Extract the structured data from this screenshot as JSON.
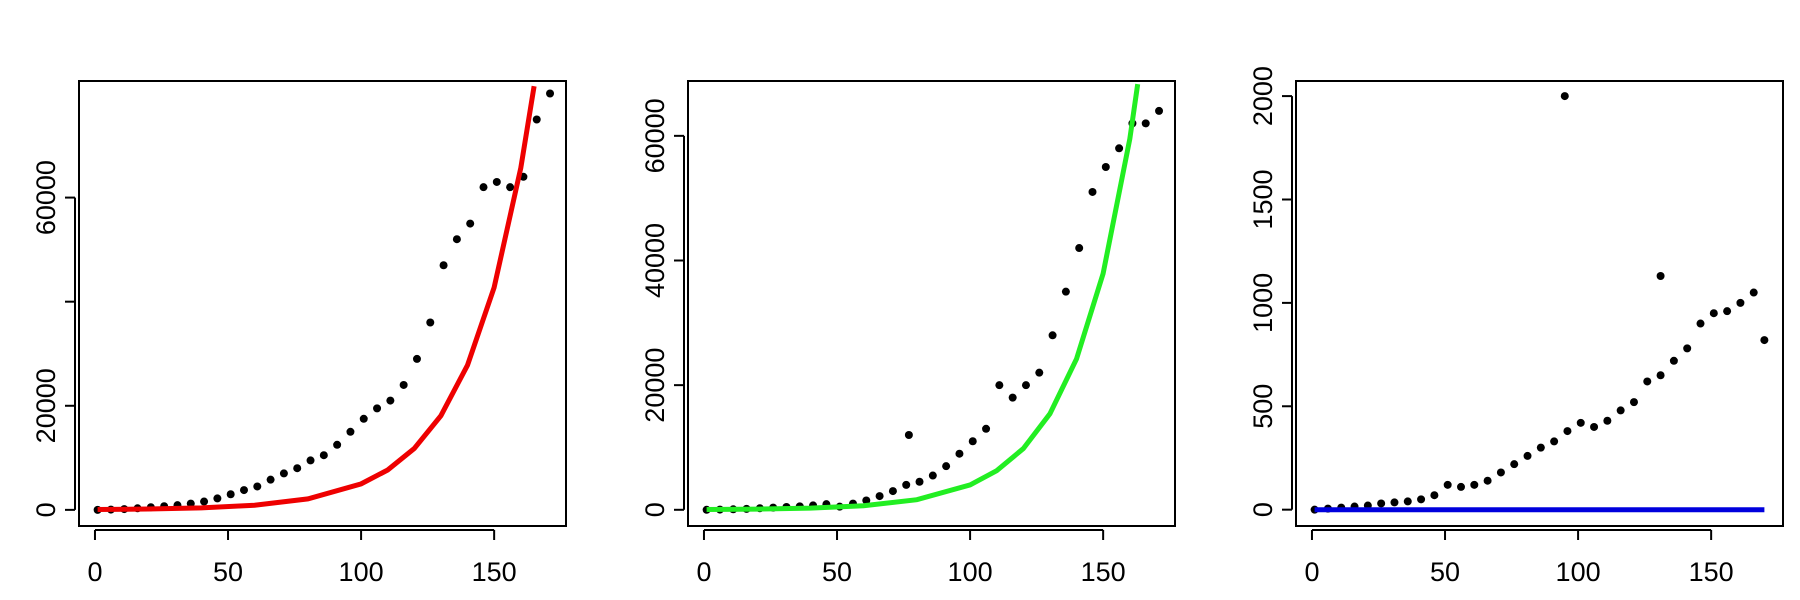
{
  "chart_data": [
    {
      "type": "scatter",
      "color": "#000000",
      "x": [
        1,
        6,
        11,
        16,
        21,
        26,
        31,
        36,
        41,
        46,
        51,
        56,
        61,
        66,
        71,
        76,
        81,
        86,
        91,
        96,
        101,
        106,
        111,
        116,
        121,
        126,
        131,
        136,
        141,
        146,
        151,
        156,
        161,
        166,
        171
      ],
      "values": [
        0,
        50,
        150,
        300,
        500,
        700,
        900,
        1200,
        1600,
        2200,
        3000,
        3800,
        4500,
        5800,
        7000,
        8000,
        9500,
        10500,
        12500,
        15000,
        17500,
        19500,
        21000,
        24000,
        29000,
        36000,
        47000,
        52000,
        55000,
        62000,
        63000,
        62000,
        64000,
        75000,
        80000
      ],
      "fit": {
        "color": "#ee0000",
        "x": [
          1,
          20,
          40,
          60,
          80,
          100,
          110,
          120,
          130,
          140,
          150,
          160,
          165
        ],
        "values": [
          71,
          160,
          378,
          893,
          2110,
          4990,
          7660,
          11800,
          18100,
          27800,
          42700,
          65700,
          81400
        ]
      },
      "xlim": [
        -6,
        177
      ],
      "ylim": [
        -3100,
        82400
      ],
      "xticks": [
        0,
        50,
        100,
        150
      ],
      "yticks": [
        0,
        20000,
        {
          "value": 40000,
          "label": null
        },
        60000
      ]
    },
    {
      "type": "scatter",
      "color": "#000000",
      "x": [
        1,
        6,
        11,
        16,
        21,
        26,
        31,
        36,
        41,
        46,
        51,
        56,
        61,
        66,
        71,
        76,
        77,
        81,
        86,
        91,
        96,
        101,
        106,
        111,
        116,
        121,
        126,
        131,
        136,
        141,
        146,
        151,
        156,
        161,
        166,
        171
      ],
      "values": [
        0,
        30,
        80,
        150,
        250,
        350,
        450,
        550,
        700,
        900,
        500,
        1000,
        1500,
        2200,
        3000,
        4000,
        12000,
        4500,
        5500,
        7000,
        9000,
        11000,
        13000,
        20000,
        18000,
        20000,
        22000,
        28000,
        35000,
        42000,
        51000,
        55000,
        58000,
        62000,
        62000,
        64000
      ],
      "fit": {
        "color": "#22ee22",
        "x": [
          1,
          20,
          40,
          60,
          80,
          100,
          110,
          120,
          130,
          140,
          150,
          160,
          163
        ],
        "values": [
          46,
          109,
          268,
          658,
          1620,
          3990,
          6270,
          9820,
          15400,
          24200,
          37900,
          59500,
          68300
        ]
      },
      "xlim": [
        -6,
        177
      ],
      "ylim": [
        -2600,
        68800
      ],
      "xticks": [
        0,
        50,
        100,
        150
      ],
      "yticks": [
        0,
        20000,
        40000,
        60000
      ]
    },
    {
      "type": "scatter",
      "color": "#000000",
      "x": [
        1,
        6,
        11,
        16,
        21,
        26,
        31,
        36,
        41,
        46,
        51,
        56,
        61,
        66,
        71,
        76,
        81,
        86,
        91,
        95,
        96,
        101,
        106,
        111,
        116,
        121,
        126,
        131,
        131,
        136,
        141,
        146,
        151,
        156,
        161,
        166,
        170
      ],
      "values": [
        0,
        5,
        10,
        15,
        20,
        30,
        35,
        40,
        50,
        70,
        120,
        110,
        120,
        140,
        180,
        220,
        260,
        300,
        330,
        2000,
        380,
        420,
        400,
        430,
        480,
        520,
        620,
        1130,
        650,
        720,
        780,
        900,
        950,
        960,
        1000,
        1050,
        820
      ],
      "fit": {
        "color": "#0000dd",
        "x": [
          1,
          170
        ],
        "values": [
          0,
          0
        ]
      },
      "xlim": [
        -6,
        177
      ],
      "ylim": [
        -79,
        2073
      ],
      "xticks": [
        0,
        50,
        100,
        150
      ],
      "yticks": [
        0,
        500,
        1000,
        1500,
        2000
      ]
    }
  ]
}
